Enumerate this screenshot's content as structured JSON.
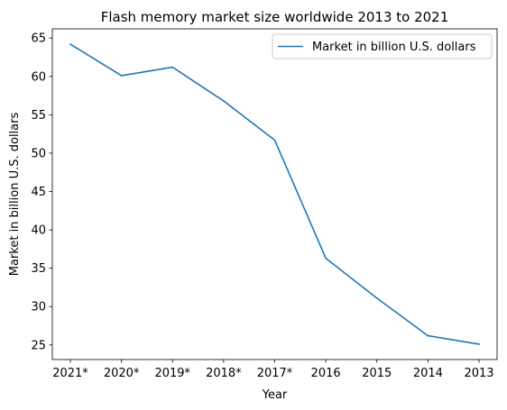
{
  "chart_data": {
    "type": "line",
    "title": "Flash memory market size worldwide 2013 to 2021",
    "xlabel": "Year",
    "ylabel": "Market in billion U.S. dollars",
    "categories": [
      "2021*",
      "2020*",
      "2019*",
      "2018*",
      "2017*",
      "2016",
      "2015",
      "2014",
      "2013"
    ],
    "series": [
      {
        "name": "Market in billion U.S. dollars",
        "values": [
          64.2,
          60.1,
          61.2,
          56.8,
          51.7,
          36.3,
          31.1,
          26.2,
          25.1
        ],
        "color": "#1f77b4"
      }
    ],
    "ylim": [
      23.1,
      66.2
    ],
    "yticks": [
      25,
      30,
      35,
      40,
      45,
      50,
      55,
      60,
      65
    ],
    "grid": false,
    "legend": "top-right"
  }
}
